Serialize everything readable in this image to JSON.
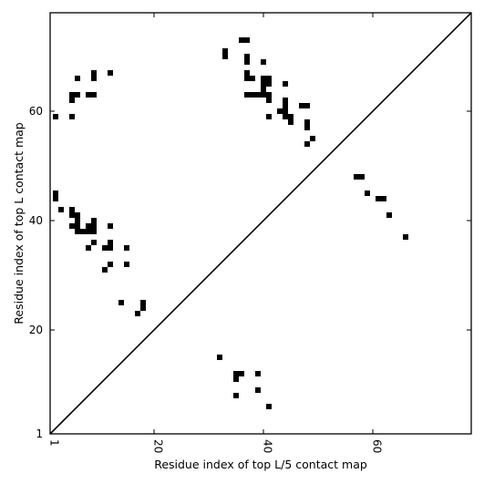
{
  "chart_data": {
    "type": "scatter",
    "xlabel": "Residue index of top L/5 contact map",
    "ylabel": "Residue index of top L contact map",
    "xlim": [
      1,
      78
    ],
    "ylim": [
      1,
      78
    ],
    "xticks": [
      1,
      20,
      40,
      60
    ],
    "yticks": [
      1,
      20,
      40,
      60
    ],
    "xtick_labels": [
      "1",
      "20",
      "40",
      "60"
    ],
    "ytick_labels": [
      "1",
      "20",
      "40",
      "60"
    ],
    "grid": false,
    "marker": "square",
    "marker_color": "#000000",
    "diagonal_line": true,
    "series": [
      {
        "values": [
          {
            "x": 2,
            "y": 45
          },
          {
            "x": 2,
            "y": 44
          },
          {
            "x": 2,
            "y": 59
          },
          {
            "x": 3,
            "y": 42
          },
          {
            "x": 5,
            "y": 63
          },
          {
            "x": 5,
            "y": 62
          },
          {
            "x": 5,
            "y": 59
          },
          {
            "x": 5,
            "y": 42
          },
          {
            "x": 5,
            "y": 41
          },
          {
            "x": 5,
            "y": 39
          },
          {
            "x": 6,
            "y": 66
          },
          {
            "x": 6,
            "y": 63
          },
          {
            "x": 6,
            "y": 41
          },
          {
            "x": 6,
            "y": 40
          },
          {
            "x": 6,
            "y": 39
          },
          {
            "x": 6,
            "y": 38
          },
          {
            "x": 7,
            "y": 38
          },
          {
            "x": 8,
            "y": 63
          },
          {
            "x": 8,
            "y": 39
          },
          {
            "x": 8,
            "y": 38
          },
          {
            "x": 8,
            "y": 35
          },
          {
            "x": 9,
            "y": 67
          },
          {
            "x": 9,
            "y": 66
          },
          {
            "x": 9,
            "y": 63
          },
          {
            "x": 9,
            "y": 40
          },
          {
            "x": 9,
            "y": 39
          },
          {
            "x": 9,
            "y": 38
          },
          {
            "x": 9,
            "y": 36
          },
          {
            "x": 11,
            "y": 35
          },
          {
            "x": 11,
            "y": 31
          },
          {
            "x": 12,
            "y": 67
          },
          {
            "x": 12,
            "y": 39
          },
          {
            "x": 12,
            "y": 36
          },
          {
            "x": 12,
            "y": 35
          },
          {
            "x": 12,
            "y": 32
          },
          {
            "x": 14,
            "y": 25
          },
          {
            "x": 15,
            "y": 35
          },
          {
            "x": 15,
            "y": 32
          },
          {
            "x": 17,
            "y": 23
          },
          {
            "x": 18,
            "y": 25
          },
          {
            "x": 18,
            "y": 24
          },
          {
            "x": 33,
            "y": 71
          },
          {
            "x": 33,
            "y": 70
          },
          {
            "x": 32,
            "y": 15
          },
          {
            "x": 35,
            "y": 12
          },
          {
            "x": 35,
            "y": 11
          },
          {
            "x": 35,
            "y": 8
          },
          {
            "x": 36,
            "y": 73
          },
          {
            "x": 36,
            "y": 12
          },
          {
            "x": 37,
            "y": 73
          },
          {
            "x": 37,
            "y": 70
          },
          {
            "x": 37,
            "y": 69
          },
          {
            "x": 37,
            "y": 67
          },
          {
            "x": 37,
            "y": 66
          },
          {
            "x": 37,
            "y": 63
          },
          {
            "x": 38,
            "y": 66
          },
          {
            "x": 38,
            "y": 63
          },
          {
            "x": 39,
            "y": 63
          },
          {
            "x": 39,
            "y": 12
          },
          {
            "x": 39,
            "y": 9
          },
          {
            "x": 40,
            "y": 69
          },
          {
            "x": 40,
            "y": 66
          },
          {
            "x": 40,
            "y": 65
          },
          {
            "x": 40,
            "y": 64
          },
          {
            "x": 40,
            "y": 63
          },
          {
            "x": 41,
            "y": 66
          },
          {
            "x": 41,
            "y": 65
          },
          {
            "x": 41,
            "y": 63
          },
          {
            "x": 41,
            "y": 62
          },
          {
            "x": 41,
            "y": 59
          },
          {
            "x": 41,
            "y": 6
          },
          {
            "x": 43,
            "y": 60
          },
          {
            "x": 44,
            "y": 65
          },
          {
            "x": 44,
            "y": 62
          },
          {
            "x": 44,
            "y": 61
          },
          {
            "x": 44,
            "y": 60
          },
          {
            "x": 44,
            "y": 59
          },
          {
            "x": 45,
            "y": 59
          },
          {
            "x": 45,
            "y": 58
          },
          {
            "x": 47,
            "y": 61
          },
          {
            "x": 48,
            "y": 61
          },
          {
            "x": 48,
            "y": 58
          },
          {
            "x": 48,
            "y": 57
          },
          {
            "x": 48,
            "y": 54
          },
          {
            "x": 49,
            "y": 55
          },
          {
            "x": 57,
            "y": 48
          },
          {
            "x": 58,
            "y": 48
          },
          {
            "x": 59,
            "y": 45
          },
          {
            "x": 61,
            "y": 44
          },
          {
            "x": 62,
            "y": 44
          },
          {
            "x": 63,
            "y": 41
          },
          {
            "x": 66,
            "y": 37
          }
        ]
      }
    ]
  }
}
